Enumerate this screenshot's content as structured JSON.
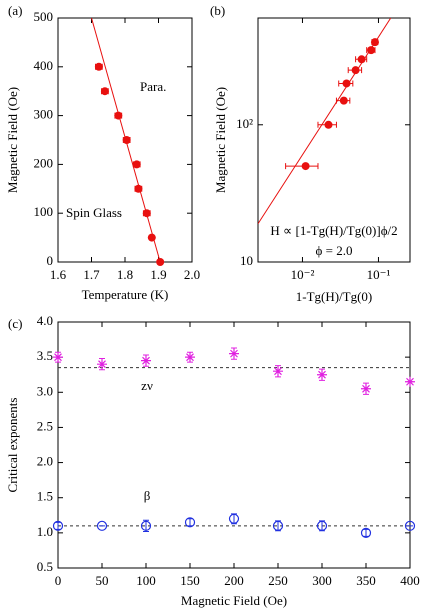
{
  "chart_data": [
    {
      "type": "scatter",
      "panel_label": "(a)",
      "xlabel": "Temperature (K)",
      "ylabel": "Magnetic Field (Oe)",
      "xlim": [
        1.6,
        2.0
      ],
      "xticks": [
        1.6,
        1.7,
        1.8,
        1.9,
        {
          "value": 2,
          "label": "2.0"
        }
      ],
      "ylim": [
        0,
        500
      ],
      "yticks": [
        0,
        100,
        200,
        300,
        400,
        500
      ],
      "series": [
        {
          "color": "#e8100f",
          "marker": "circle-filled",
          "x": [
            1.722,
            1.74,
            1.78,
            1.805,
            1.835,
            1.84,
            1.865,
            1.88,
            1.905
          ],
          "xerr": [
            0.01,
            0.01,
            0.01,
            0.01,
            0.01,
            0.01,
            0.01,
            0.005,
            0.005
          ],
          "values": [
            400,
            350,
            300,
            250,
            200,
            150,
            100,
            50,
            0
          ]
        }
      ],
      "fit": {
        "color": "#e8100f",
        "x": [
          1.7,
          1.905
        ],
        "values": [
          500,
          0
        ]
      },
      "annotations": [
        "Para.",
        "Spin Glass"
      ]
    },
    {
      "type": "scatter",
      "panel_label": "(b)",
      "xlabel": "1-Tg(H)/Tg(0)",
      "ylabel": "Magnetic Field (Oe)",
      "xlog": true,
      "ylog": true,
      "xlim": [
        0.0026,
        0.26
      ],
      "xticks": [
        {
          "value": 0.01,
          "label": "10⁻²"
        },
        {
          "value": 0.1,
          "label": "10⁻¹"
        }
      ],
      "ylim": [
        10,
        600
      ],
      "yticks": [
        10,
        {
          "value": 100,
          "label": "10²"
        }
      ],
      "series": [
        {
          "color": "#e8100f",
          "marker": "circle-filled",
          "x": [
            0.011,
            0.022,
            0.035,
            0.038,
            0.05,
            0.06,
            0.08,
            0.09
          ],
          "xerr": [
            0.005,
            0.006,
            0.007,
            0.008,
            0.01,
            0.01,
            0.01,
            0.008
          ],
          "values": [
            50,
            100,
            150,
            200,
            250,
            300,
            350,
            400
          ]
        }
      ],
      "fit": {
        "color": "#e8100f",
        "x": [
          0.0026,
          0.145
        ],
        "values": [
          19,
          600
        ]
      },
      "annotations": [
        "H ∝ [1-Tg(H)/Tg(0)]ϕ/2",
        "ϕ = 2.0"
      ]
    },
    {
      "type": "scatter",
      "panel_label": "(c)",
      "xlabel": "Magnetic Field (Oe)",
      "ylabel": "Critical exponents",
      "xlim": [
        0,
        400
      ],
      "xticks": [
        0,
        50,
        100,
        150,
        200,
        250,
        300,
        350,
        400
      ],
      "ylim": [
        0.5,
        4
      ],
      "yticks": [
        0.5,
        {
          "value": 1,
          "label": "1.0"
        },
        1.5,
        {
          "value": 2,
          "label": "2.0"
        },
        2.5,
        {
          "value": 3,
          "label": "3.0"
        },
        3.5,
        {
          "value": 4,
          "label": "4.0"
        }
      ],
      "series": [
        {
          "name": "zν",
          "color": "#e020e0",
          "marker": "asterisk",
          "x": [
            0,
            50,
            100,
            150,
            200,
            250,
            300,
            350,
            400
          ],
          "values": [
            3.5,
            3.4,
            3.45,
            3.5,
            3.55,
            3.3,
            3.25,
            3.05,
            3.15
          ],
          "yerr": [
            0.07,
            0.08,
            0.08,
            0.07,
            0.08,
            0.08,
            0.08,
            0.08,
            0
          ]
        },
        {
          "name": "β",
          "color": "#2030e0",
          "marker": "circle-open",
          "x": [
            0,
            50,
            100,
            150,
            200,
            250,
            300,
            350,
            400
          ],
          "values": [
            1.1,
            1.1,
            1.1,
            1.15,
            1.2,
            1.1,
            1.1,
            1.0,
            1.1
          ],
          "yerr": [
            0.05,
            0,
            0.08,
            0.05,
            0.07,
            0.07,
            0.07,
            0.05,
            0
          ]
        }
      ],
      "hlines": [
        {
          "value": 3.35,
          "color": "#333333"
        },
        {
          "value": 1.1,
          "color": "#333333"
        }
      ]
    }
  ]
}
